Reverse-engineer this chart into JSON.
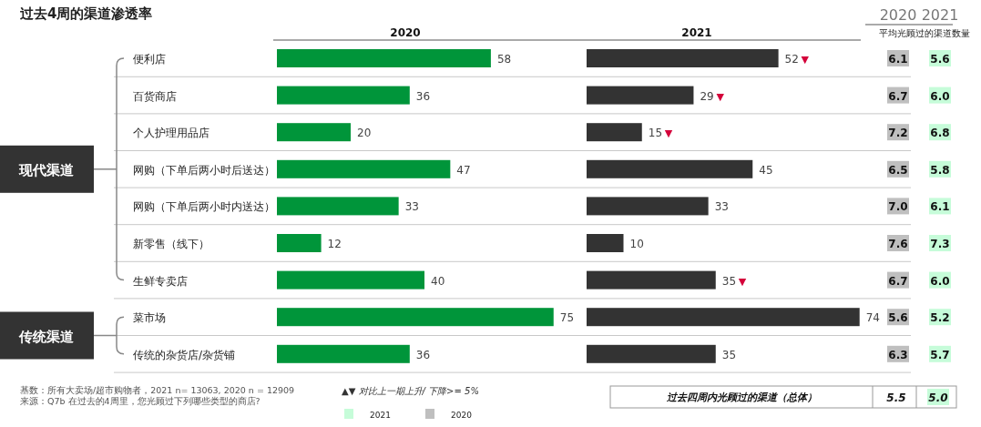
{
  "chart_data": [
    {
      "type": "bar",
      "orientation": "horizontal",
      "title": "过去4周的渠道渗透率",
      "subtitle": "2020",
      "categories": [
        "便利店",
        "百货商店",
        "个人护理用品店",
        "网购（下单后两小时后送达）",
        "网购（下单后两小时内送达）",
        "新零售（线下）",
        "生鲜专卖店",
        "菜市场",
        "传统的杂货店/杂货铺"
      ],
      "values": [
        58,
        36,
        20,
        47,
        33,
        12,
        40,
        75,
        36
      ],
      "color": "#00953a",
      "data_labels": true,
      "annotations": [
        "现代渠道",
        "传统渠道",
        "基数：所有大卖场/超市购物者，2021 n= 13063, 2020 n = 12909",
        "来源：Q7b 在过去的4周里，您光顾过下列哪些类型的商店?"
      ]
    },
    {
      "type": "bar",
      "orientation": "horizontal",
      "subtitle": "2021",
      "categories": [
        "便利店",
        "百货商店",
        "个人护理用品店",
        "网购（下单后两小时后送达）",
        "网购（下单后两小时内送达）",
        "新零售（线下）",
        "生鲜专卖店",
        "菜市场",
        "传统的杂货店/杂货铺"
      ],
      "values": [
        52,
        29,
        15,
        45,
        33,
        10,
        35,
        74,
        35
      ],
      "color": "#333333",
      "data_labels": true,
      "tick_labels": false,
      "annotations": [
        {
          "text": "▼",
          "x": 52,
          "y": "便利店"
        },
        {
          "text": "▼",
          "x": 29,
          "y": "百货商店"
        },
        {
          "text": "▼",
          "x": 15,
          "y": "个人护理用品店"
        },
        {
          "text": "▼",
          "x": 35,
          "y": "生鲜专卖店"
        },
        "▲▼ 对比上一期上升/ 下降>= 5%"
      ]
    },
    {
      "type": "heatmap",
      "subtitle": "平均光顾过的渠道数量",
      "categories": [
        "2020",
        "2021"
      ],
      "y_categories": [
        null,
        null,
        null,
        null,
        null,
        null,
        null,
        null,
        null
      ],
      "colors": [
        "#bfbfbf",
        "#c6fcd9"
      ],
      "cells": [
        [
          6.1,
          5.6
        ],
        [
          6.7,
          6.0
        ],
        [
          7.2,
          6.8
        ],
        [
          6.5,
          5.8
        ],
        [
          7.0,
          6.1
        ],
        [
          7.6,
          7.3
        ],
        [
          6.7,
          6.0
        ],
        [
          5.6,
          5.2
        ],
        [
          6.3,
          5.7
        ]
      ],
      "cell_labels": [
        [
          "6.1",
          "5.6"
        ],
        [
          "6.7",
          "6.0"
        ],
        [
          "7.2",
          "6.8"
        ],
        [
          "6.5",
          "5.8"
        ],
        [
          "7.0",
          "6.1"
        ],
        [
          "7.6",
          "7.3"
        ],
        [
          "6.7",
          "6.0"
        ],
        [
          "5.6",
          "5.2"
        ],
        [
          "6.3",
          "5.7"
        ]
      ]
    },
    {
      "type": "heatmap",
      "categories": [
        null,
        null
      ],
      "y_categories": [
        "过去四周内光顾过的渠道（总体）"
      ],
      "colors": [
        "#ffffff",
        "#c6fcd9"
      ],
      "cells": [
        [
          5.5,
          5.0
        ]
      ],
      "cell_labels": [
        [
          "5.5",
          "5.0"
        ]
      ]
    }
  ]
}
